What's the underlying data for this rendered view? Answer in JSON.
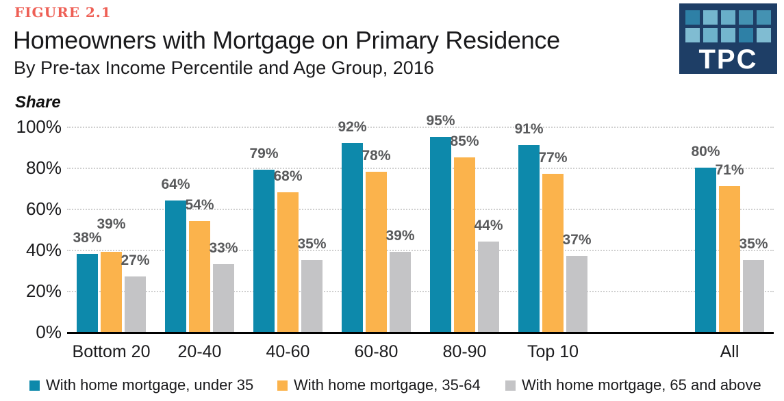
{
  "figure_label": "FIGURE 2.1",
  "logo": {
    "text": "TPC",
    "background_color": "#1e3e66",
    "tile_colors": [
      "#2e80a6",
      "#74b6ce",
      "#69afc9",
      "#4492b2",
      "#4492b2",
      "#80bcd2",
      "#6db2cb",
      "#74b6ce",
      "#2e80a6",
      "#80bcd2"
    ]
  },
  "chart_data": {
    "type": "bar",
    "title": "Homeowners with Mortgage on Primary Residence",
    "subtitle": "By Pre-tax Income Percentile and Age Group, 2016",
    "ylabel": "Share",
    "xlabel": "",
    "ylim": [
      0,
      100
    ],
    "y_ticks": [
      100,
      80,
      60,
      40,
      20,
      0
    ],
    "y_tick_suffix": "%",
    "grid": "horizontal-dotted",
    "gridline_color": "#cfcfcf",
    "axis_color": "#000000",
    "legend_position": "bottom",
    "value_label_suffix": "%",
    "value_label_color": "#58595b",
    "categories": [
      "Bottom 20",
      "20-40",
      "40-60",
      "60-80",
      "80-90",
      "Top 10",
      "All"
    ],
    "category_slots": [
      0,
      1,
      2,
      3,
      4,
      5,
      7
    ],
    "slot_count": 8,
    "series": [
      {
        "name": "With home mortgage, under 35",
        "color": "#0d89ab",
        "values": [
          38,
          64,
          79,
          92,
          95,
          91,
          80
        ]
      },
      {
        "name": "With home mortgage, 35-64",
        "color": "#fbb34c",
        "values": [
          39,
          54,
          68,
          78,
          85,
          77,
          71
        ],
        "label_dy": [
          17,
          0,
          0,
          0,
          0,
          0,
          0
        ]
      },
      {
        "name": "With home mortgage, 65 and above",
        "color": "#c4c4c6",
        "values": [
          27,
          33,
          35,
          39,
          44,
          37,
          35
        ]
      }
    ]
  }
}
